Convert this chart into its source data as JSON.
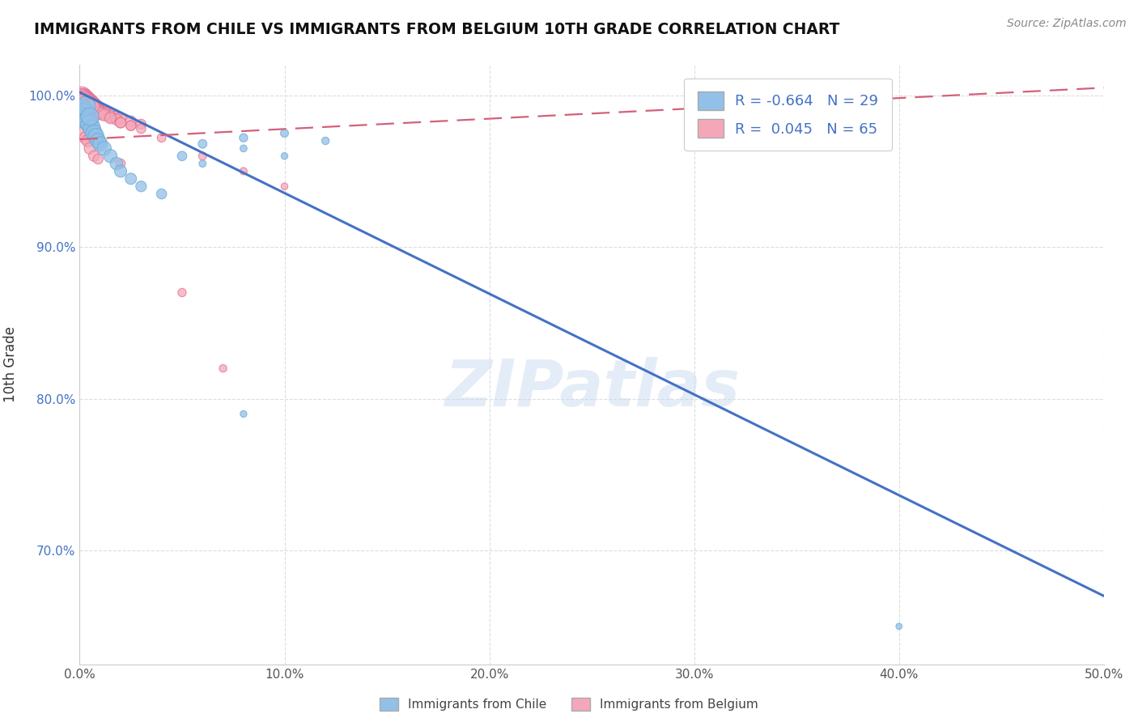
{
  "title": "IMMIGRANTS FROM CHILE VS IMMIGRANTS FROM BELGIUM 10TH GRADE CORRELATION CHART",
  "source": "Source: ZipAtlas.com",
  "ylabel": "10th Grade",
  "x_min": 0.0,
  "x_max": 0.5,
  "y_min": 0.625,
  "y_max": 1.02,
  "x_ticks": [
    0.0,
    0.1,
    0.2,
    0.3,
    0.4,
    0.5
  ],
  "x_tick_labels": [
    "0.0%",
    "10.0%",
    "20.0%",
    "30.0%",
    "40.0%",
    "50.0%"
  ],
  "y_ticks": [
    0.7,
    0.8,
    0.9,
    1.0
  ],
  "y_tick_labels": [
    "70.0%",
    "80.0%",
    "90.0%",
    "100.0%"
  ],
  "chile_color": "#92c0e8",
  "chile_edge_color": "#6aaad4",
  "belgium_color": "#f4a7b9",
  "belgium_edge_color": "#e07090",
  "chile_R": -0.664,
  "chile_N": 29,
  "belgium_R": 0.045,
  "belgium_N": 65,
  "watermark": "ZIPatlas",
  "legend_chile": "Immigrants from Chile",
  "legend_belgium": "Immigrants from Belgium",
  "chile_line_x0": 0.0,
  "chile_line_y0": 1.002,
  "chile_line_x1": 0.5,
  "chile_line_y1": 0.67,
  "belgium_line_x0": 0.0,
  "belgium_line_y0": 0.971,
  "belgium_line_x1": 0.5,
  "belgium_line_y1": 1.005,
  "chile_scatter_x": [
    0.001,
    0.002,
    0.003,
    0.004,
    0.005,
    0.006,
    0.007,
    0.008,
    0.009,
    0.01,
    0.012,
    0.015,
    0.018,
    0.02,
    0.025,
    0.03,
    0.04,
    0.05,
    0.06,
    0.08,
    0.1,
    0.12,
    0.06,
    0.08,
    0.1,
    0.003,
    0.005,
    0.4,
    0.08
  ],
  "chile_scatter_y": [
    0.99,
    0.988,
    0.985,
    0.983,
    0.981,
    0.978,
    0.975,
    0.973,
    0.97,
    0.968,
    0.965,
    0.96,
    0.955,
    0.95,
    0.945,
    0.94,
    0.935,
    0.96,
    0.968,
    0.972,
    0.975,
    0.97,
    0.955,
    0.965,
    0.96,
    0.993,
    0.986,
    0.65,
    0.79
  ],
  "chile_scatter_size": [
    380,
    340,
    310,
    280,
    260,
    240,
    220,
    200,
    185,
    170,
    155,
    140,
    125,
    115,
    100,
    90,
    80,
    70,
    60,
    55,
    50,
    45,
    40,
    38,
    35,
    300,
    250,
    30,
    35
  ],
  "belgium_scatter_x": [
    0.001,
    0.002,
    0.003,
    0.004,
    0.005,
    0.006,
    0.007,
    0.008,
    0.009,
    0.01,
    0.012,
    0.014,
    0.016,
    0.018,
    0.02,
    0.025,
    0.03,
    0.001,
    0.002,
    0.003,
    0.004,
    0.005,
    0.006,
    0.007,
    0.008,
    0.009,
    0.01,
    0.012,
    0.015,
    0.018,
    0.02,
    0.025,
    0.001,
    0.002,
    0.003,
    0.004,
    0.005,
    0.006,
    0.007,
    0.009,
    0.01,
    0.012,
    0.015,
    0.02,
    0.025,
    0.03,
    0.04,
    0.06,
    0.08,
    0.1,
    0.001,
    0.002,
    0.003,
    0.004,
    0.005,
    0.006,
    0.002,
    0.003,
    0.004,
    0.005,
    0.007,
    0.009,
    0.02,
    0.05,
    0.07
  ],
  "belgium_scatter_y": [
    0.999,
    0.998,
    0.997,
    0.996,
    0.995,
    0.994,
    0.993,
    0.992,
    0.991,
    0.99,
    0.989,
    0.988,
    0.987,
    0.986,
    0.985,
    0.983,
    0.981,
    0.998,
    0.997,
    0.996,
    0.995,
    0.994,
    0.993,
    0.992,
    0.991,
    0.99,
    0.989,
    0.988,
    0.986,
    0.984,
    0.982,
    0.98,
    0.997,
    0.996,
    0.995,
    0.994,
    0.993,
    0.992,
    0.991,
    0.989,
    0.988,
    0.987,
    0.985,
    0.982,
    0.98,
    0.978,
    0.972,
    0.96,
    0.95,
    0.94,
    0.998,
    0.997,
    0.996,
    0.995,
    0.994,
    0.993,
    0.975,
    0.972,
    0.97,
    0.965,
    0.96,
    0.958,
    0.955,
    0.87,
    0.82
  ],
  "belgium_scatter_size": [
    320,
    300,
    280,
    260,
    240,
    220,
    200,
    185,
    170,
    155,
    140,
    128,
    116,
    105,
    96,
    85,
    75,
    290,
    270,
    250,
    230,
    210,
    192,
    175,
    160,
    146,
    133,
    120,
    108,
    97,
    87,
    78,
    280,
    260,
    240,
    220,
    200,
    182,
    165,
    135,
    122,
    110,
    99,
    88,
    78,
    70,
    60,
    50,
    42,
    36,
    270,
    250,
    230,
    210,
    192,
    175,
    140,
    128,
    116,
    105,
    90,
    78,
    68,
    55,
    45
  ]
}
